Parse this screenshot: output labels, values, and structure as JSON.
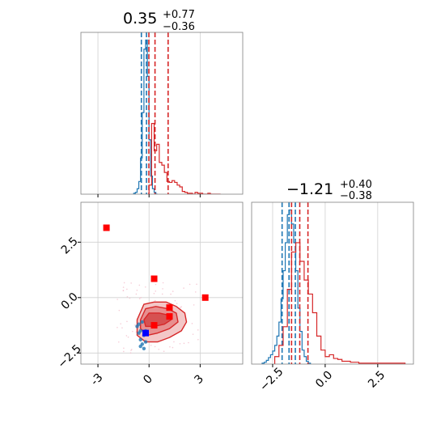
{
  "chart_data": [
    {
      "type": "histogram",
      "panel": "top-left",
      "title": {
        "main": "0.35",
        "sup": "+0.77",
        "sub": "−0.36"
      },
      "xlim": [
        -4.0,
        5.5
      ],
      "xticks": [
        -3,
        0,
        3
      ],
      "grid": true,
      "series": [
        {
          "color": "#1f77b4",
          "bins_x": [
            -0.9,
            -0.8,
            -0.7,
            -0.6,
            -0.5,
            -0.4,
            -0.3,
            -0.2,
            -0.1,
            0.0,
            0.1,
            0.2,
            0.3,
            0.4
          ],
          "counts": [
            1,
            2,
            6,
            14,
            40,
            90,
            160,
            170,
            130,
            60,
            20,
            6,
            2,
            0
          ],
          "quantile_lines": [
            -0.45,
            -0.15
          ]
        },
        {
          "color": "#d62728",
          "bins_x": [
            0.0,
            0.15,
            0.3,
            0.45,
            0.6,
            0.75,
            0.9,
            1.05,
            1.2,
            1.35,
            1.5,
            1.65,
            1.8,
            1.95,
            2.1,
            2.25,
            2.4,
            2.55,
            2.7,
            2.85,
            3.0,
            3.15,
            3.3,
            3.45,
            3.6,
            3.75,
            3.9,
            4.05
          ],
          "counts": [
            10,
            78,
            48,
            55,
            35,
            32,
            24,
            14,
            13,
            15,
            13,
            10,
            8,
            3,
            2,
            1,
            1,
            0,
            2,
            1,
            1,
            0,
            0,
            1,
            0,
            0,
            0,
            0
          ],
          "quantile_lines": [
            -0.01,
            0.35,
            1.12
          ]
        }
      ]
    },
    {
      "type": "histogram",
      "panel": "bottom-right",
      "title": {
        "main": "−1.21",
        "sup": "+0.40",
        "sub": "−0.38"
      },
      "xlim": [
        -3.5,
        4.2
      ],
      "xticks": [
        -2.5,
        0.0,
        2.5
      ],
      "xtick_labels": [
        "−2.5",
        "0.0",
        "2.5"
      ],
      "grid": true,
      "series": [
        {
          "color": "#1f77b4",
          "bins_x": [
            -3.0,
            -2.9,
            -2.8,
            -2.7,
            -2.6,
            -2.5,
            -2.4,
            -2.3,
            -2.2,
            -2.1,
            -2.0,
            -1.9,
            -1.8,
            -1.7,
            -1.6,
            -1.5,
            -1.4,
            -1.3,
            -1.2,
            -1.1,
            -1.0,
            -0.9,
            -0.8
          ],
          "counts": [
            1,
            2,
            4,
            7,
            10,
            14,
            20,
            30,
            45,
            70,
            100,
            130,
            160,
            165,
            150,
            130,
            100,
            60,
            35,
            15,
            8,
            3,
            1
          ],
          "quantile_lines": [
            -2.05,
            -1.72,
            -1.42
          ]
        },
        {
          "color": "#d62728",
          "bins_x": [
            -2.4,
            -2.2,
            -2.0,
            -1.8,
            -1.6,
            -1.4,
            -1.2,
            -1.0,
            -0.8,
            -0.6,
            -0.4,
            -0.2,
            0.0,
            0.2,
            0.4,
            0.6,
            0.8,
            1.0,
            1.2,
            1.4,
            1.6,
            1.8,
            2.0,
            2.2,
            2.4,
            2.6,
            2.8,
            3.0,
            3.2,
            3.4,
            3.6
          ],
          "counts": [
            8,
            20,
            40,
            80,
            120,
            130,
            110,
            90,
            75,
            55,
            30,
            15,
            8,
            10,
            6,
            5,
            3,
            3,
            2,
            2,
            1,
            1,
            1,
            1,
            1,
            1,
            1,
            1,
            1,
            1,
            1
          ],
          "quantile_lines": [
            -1.6,
            -1.21,
            -0.82
          ]
        }
      ]
    },
    {
      "type": "scatter_contour",
      "panel": "bottom-left",
      "xlim": [
        -4.0,
        5.5
      ],
      "ylim": [
        -3.0,
        4.3
      ],
      "xticks": [
        -3,
        0,
        3
      ],
      "yticks": [
        -2.5,
        0.0,
        2.5
      ],
      "ytick_labels": [
        "−2.5",
        "0.0",
        "2.5"
      ],
      "grid": true,
      "contours": [
        {
          "level": "outer",
          "fill": "#f3c7c7",
          "stroke": "#d62728",
          "points": [
            [
              -0.7,
              -1.0
            ],
            [
              -0.3,
              -0.3
            ],
            [
              0.3,
              -0.2
            ],
            [
              1.0,
              -0.2
            ],
            [
              1.6,
              -0.4
            ],
            [
              2.1,
              -0.7
            ],
            [
              2.2,
              -1.1
            ],
            [
              1.9,
              -1.5
            ],
            [
              1.2,
              -1.8
            ],
            [
              0.5,
              -2.0
            ],
            [
              -0.2,
              -2.0
            ],
            [
              -0.7,
              -1.7
            ]
          ]
        },
        {
          "level": "mid",
          "fill": "#e78f8f",
          "stroke": "#d62728",
          "points": [
            [
              -0.5,
              -1.0
            ],
            [
              -0.2,
              -0.5
            ],
            [
              0.4,
              -0.4
            ],
            [
              1.1,
              -0.5
            ],
            [
              1.6,
              -0.7
            ],
            [
              1.7,
              -1.1
            ],
            [
              1.2,
              -1.4
            ],
            [
              0.5,
              -1.6
            ],
            [
              -0.1,
              -1.7
            ],
            [
              -0.5,
              -1.4
            ]
          ]
        },
        {
          "level": "inner",
          "fill": "#d65151",
          "stroke": "#d62728",
          "points": [
            [
              -0.3,
              -1.0
            ],
            [
              0.0,
              -0.7
            ],
            [
              0.6,
              -0.7
            ],
            [
              1.2,
              -0.8
            ],
            [
              1.3,
              -1.0
            ],
            [
              0.9,
              -1.2
            ],
            [
              0.3,
              -1.3
            ],
            [
              -0.2,
              -1.3
            ]
          ]
        }
      ],
      "blue_density": {
        "color": "#1f77b4",
        "points": [
          [
            -0.7,
            -1.3
          ],
          [
            -0.6,
            -1.6
          ],
          [
            -0.5,
            -1.9
          ],
          [
            -0.4,
            -2.1
          ],
          [
            -0.3,
            -2.3
          ],
          [
            -0.2,
            -2.0
          ],
          [
            -0.3,
            -1.7
          ],
          [
            -0.5,
            -1.5
          ],
          [
            -0.6,
            -1.2
          ],
          [
            -0.4,
            -1.1
          ],
          [
            -0.2,
            -1.5
          ],
          [
            -0.5,
            -2.2
          ]
        ]
      },
      "markers": [
        {
          "x": -2.5,
          "y": 3.15,
          "color": "#ff0000"
        },
        {
          "x": 0.3,
          "y": 0.85,
          "color": "#ff0000"
        },
        {
          "x": 3.3,
          "y": 0.0,
          "color": "#ff0000"
        },
        {
          "x": 1.2,
          "y": -0.45,
          "color": "#ff0000"
        },
        {
          "x": 1.2,
          "y": -0.85,
          "color": "#ff0000"
        },
        {
          "x": 0.3,
          "y": -1.25,
          "color": "#ff0000"
        },
        {
          "x": -0.2,
          "y": -1.6,
          "color": "#0000ff"
        }
      ]
    }
  ]
}
